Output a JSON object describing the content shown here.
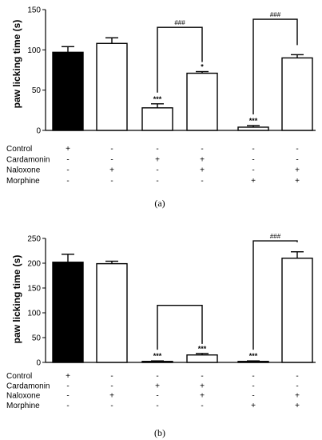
{
  "row_labels": [
    "Control",
    "Cardamonin",
    "Naloxone",
    "Morphine"
  ],
  "chart_data": [
    {
      "type": "bar",
      "panel": "(a)",
      "ylabel": "paw licking time (s)",
      "ylim": [
        0,
        150
      ],
      "yticks": [
        0,
        50,
        100,
        150
      ],
      "values": [
        97,
        108,
        28,
        71,
        4,
        90
      ],
      "errors": [
        7,
        7,
        5,
        2,
        2,
        4
      ],
      "fills": [
        "#000000",
        "#ffffff",
        "#ffffff",
        "#ffffff",
        "#ffffff",
        "#ffffff"
      ],
      "bar_labels": [
        "",
        "",
        "***",
        "*",
        "***",
        ""
      ],
      "conditions": [
        [
          "+",
          "-",
          "-",
          "-",
          "-",
          "-"
        ],
        [
          "-",
          "-",
          "+",
          "+",
          "-",
          "-"
        ],
        [
          "-",
          "+",
          "-",
          "+",
          "-",
          "+"
        ],
        [
          "-",
          "-",
          "-",
          "-",
          "+",
          "+"
        ]
      ],
      "brackets": [
        {
          "from": 2,
          "to": 3,
          "label": "###",
          "level": 128
        },
        {
          "from": 4,
          "to": 5,
          "label": "###",
          "level": 138
        }
      ]
    },
    {
      "type": "bar",
      "panel": "(b)",
      "ylabel": "paw licking time (s)",
      "ylim": [
        0,
        250
      ],
      "yticks": [
        0,
        50,
        100,
        150,
        200,
        250
      ],
      "values": [
        202,
        199,
        2,
        15,
        2,
        210
      ],
      "errors": [
        16,
        5,
        1,
        3,
        1,
        13
      ],
      "fills": [
        "#000000",
        "#ffffff",
        "#ffffff",
        "#ffffff",
        "#ffffff",
        "#ffffff"
      ],
      "bar_labels": [
        "",
        "",
        "***",
        "***",
        "***",
        ""
      ],
      "conditions": [
        [
          "+",
          "-",
          "-",
          "-",
          "-",
          "-"
        ],
        [
          "-",
          "-",
          "+",
          "+",
          "-",
          "-"
        ],
        [
          "-",
          "+",
          "-",
          "+",
          "-",
          "+"
        ],
        [
          "-",
          "-",
          "-",
          "-",
          "+",
          "+"
        ]
      ],
      "brackets": [
        {
          "from": 2,
          "to": 3,
          "label": "",
          "level": 115
        },
        {
          "from": 4,
          "to": 5,
          "label": "###",
          "level": 245
        }
      ]
    }
  ]
}
